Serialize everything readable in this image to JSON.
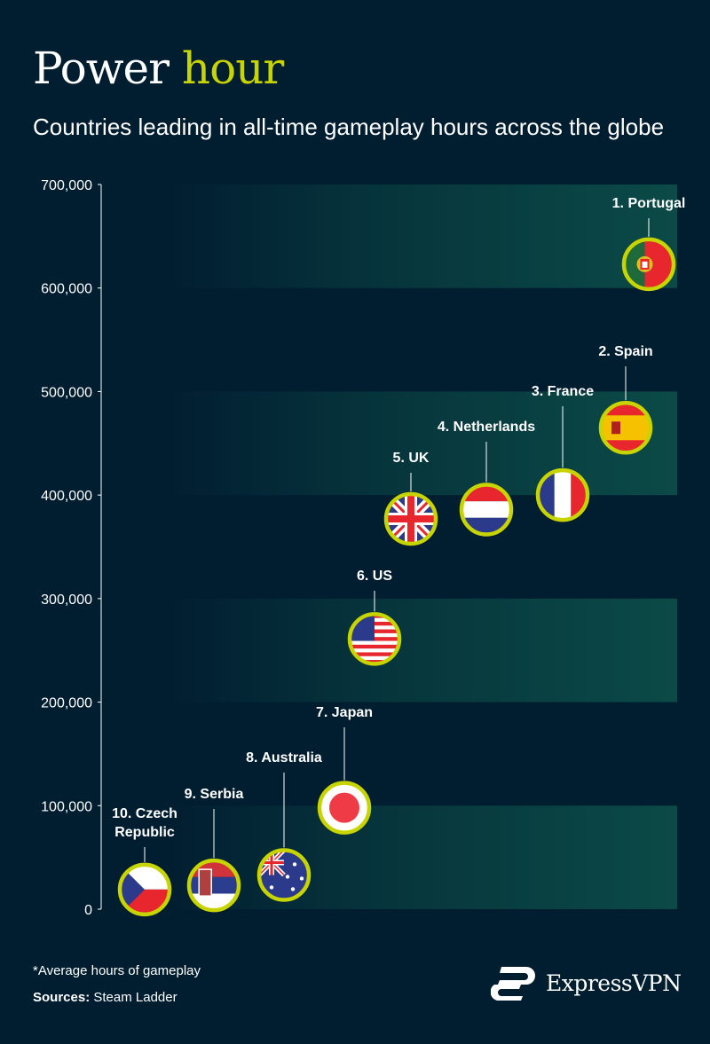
{
  "header": {
    "title_main": "Power",
    "title_accent": "hour",
    "subtitle": "Countries leading in all-time gameplay hours across the globe"
  },
  "colors": {
    "background": "#011d30",
    "accent": "#c8d400",
    "band": "#0b4a47"
  },
  "chart_data": {
    "type": "scatter",
    "title": "Power hour",
    "subtitle": "Countries leading in all-time gameplay hours across the globe",
    "ylabel": "",
    "xlabel": "",
    "ylim": [
      0,
      700000
    ],
    "y_ticks": [
      "0",
      "100,000",
      "200,000",
      "300,000",
      "400,000",
      "500,000",
      "600,000",
      "700,000"
    ],
    "grid": "alternating horizontal bands",
    "points": [
      {
        "rank": 1,
        "label": "1. Portugal",
        "country": "Portugal",
        "flag": "pt",
        "value": 623000
      },
      {
        "rank": 2,
        "label": "2. Spain",
        "country": "Spain",
        "flag": "es",
        "value": 465000
      },
      {
        "rank": 3,
        "label": "3. France",
        "country": "France",
        "flag": "fr",
        "value": 400000
      },
      {
        "rank": 4,
        "label": "4. Netherlands",
        "country": "Netherlands",
        "flag": "nl",
        "value": 386000
      },
      {
        "rank": 5,
        "label": "5. UK",
        "country": "UK",
        "flag": "gb",
        "value": 377000
      },
      {
        "rank": 6,
        "label": "6. US",
        "country": "US",
        "flag": "us",
        "value": 261000
      },
      {
        "rank": 7,
        "label": "7. Japan",
        "country": "Japan",
        "flag": "jp",
        "value": 98000
      },
      {
        "rank": 8,
        "label": "8. Australia",
        "country": "Australia",
        "flag": "au",
        "value": 33000
      },
      {
        "rank": 9,
        "label": "9. Serbia",
        "country": "Serbia",
        "flag": "rs",
        "value": 23000
      },
      {
        "rank": 10,
        "label": "10. Czech Republic",
        "label_lines": [
          "10. Czech",
          "Republic"
        ],
        "country": "Czech Republic",
        "flag": "cz",
        "value": 19000
      }
    ]
  },
  "footer": {
    "note": "*Average hours of gameplay",
    "sources_label": "Sources:",
    "sources_value": "Steam Ladder",
    "brand": "ExpressVPN"
  }
}
